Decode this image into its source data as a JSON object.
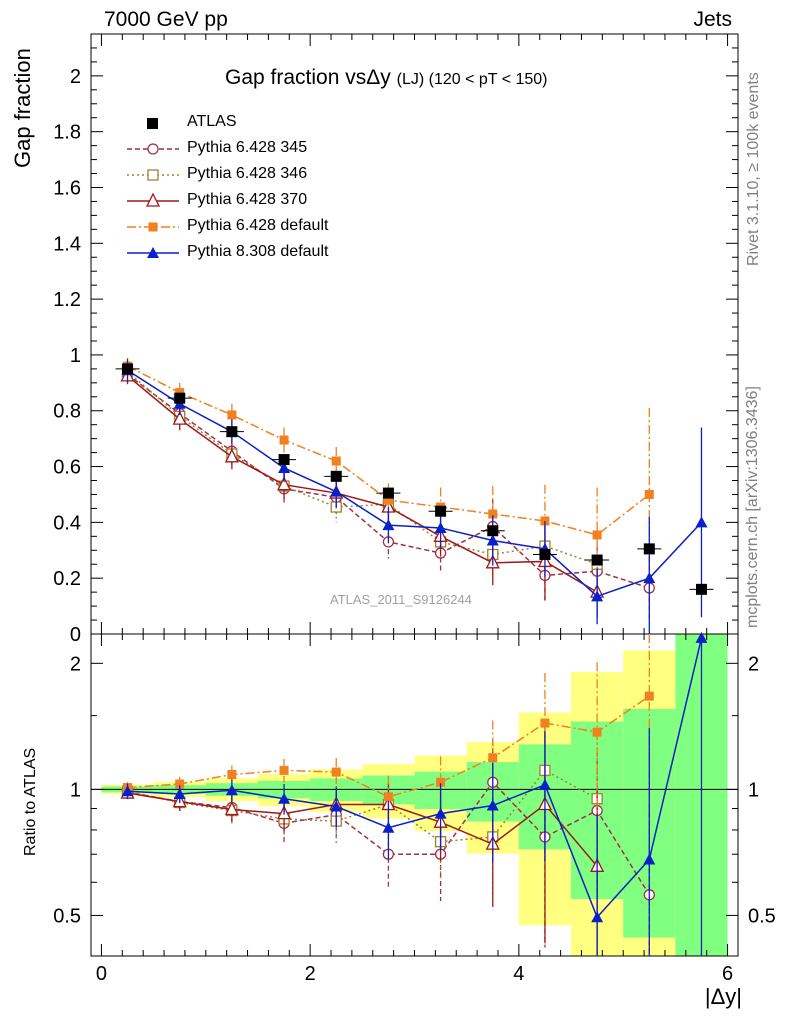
{
  "header": {
    "left": "7000 GeV pp",
    "right": "Jets"
  },
  "side_labels": {
    "top": "Rivet 3.1.10, ≥ 100k events",
    "bottom": "mcplots.cern.ch [arXiv:1306.3436]"
  },
  "watermark": "ATLAS_2011_S9126244",
  "chart_data": {
    "type": "line",
    "title": "Gap fraction vsΔy",
    "title_sub": "(LJ) (120 < pT < 150)",
    "xlabel": "|Δy|",
    "ylabel": "Gap fraction",
    "ratio_ylabel": "Ratio to ATLAS",
    "xlim": [
      -0.1,
      6.1
    ],
    "ylim_main": [
      0,
      2.15
    ],
    "ylim_ratio": [
      0.4,
      2.35
    ],
    "ratio_scale": "log",
    "x_ticks": [
      "0",
      "2",
      "4",
      "6"
    ],
    "y_ticks_main": [
      "0",
      "0.2",
      "0.4",
      "0.6",
      "0.8",
      "1",
      "1.2",
      "1.4",
      "1.6",
      "1.8",
      "2"
    ],
    "y_ticks_ratio": [
      "0.5",
      "1",
      "2"
    ],
    "grid": false,
    "legend_position": "top-left",
    "x": [
      0.25,
      0.75,
      1.25,
      1.75,
      2.25,
      2.75,
      3.25,
      3.75,
      4.25,
      4.75,
      5.25,
      5.75
    ],
    "reference": {
      "name": "ATLAS",
      "values": [
        0.95,
        0.845,
        0.725,
        0.625,
        0.565,
        0.505,
        0.44,
        0.37,
        0.285,
        0.265,
        0.305,
        0.16
      ],
      "band_inner": [
        0.015,
        0.02,
        0.025,
        0.03,
        0.035,
        0.04,
        0.045,
        0.06,
        0.08,
        0.12,
        0.17,
        0.3
      ],
      "band_outer": [
        0.025,
        0.035,
        0.045,
        0.055,
        0.065,
        0.075,
        0.09,
        0.11,
        0.15,
        0.24,
        0.35,
        0.48
      ]
    },
    "series": [
      {
        "name": "Pythia 6.428 345",
        "color": "#a0304a",
        "dash": "5,3",
        "marker": "circle-open",
        "values": [
          0.93,
          0.79,
          0.655,
          0.52,
          0.49,
          0.33,
          0.29,
          0.385,
          0.21,
          0.225,
          0.165,
          null
        ],
        "errors": [
          0.03,
          0.04,
          0.05,
          0.055,
          0.06,
          0.06,
          0.07,
          0.1,
          0.1,
          0.09,
          0.11,
          null
        ],
        "ratios": [
          0.985,
          0.935,
          0.905,
          0.83,
          0.87,
          0.7,
          0.7,
          1.04,
          0.77,
          0.89,
          0.56,
          null
        ]
      },
      {
        "name": "Pythia 6.428 346",
        "color": "#a08030",
        "dash": "2,3",
        "marker": "square-open",
        "values": [
          0.94,
          0.78,
          0.645,
          0.53,
          0.455,
          0.465,
          0.33,
          0.285,
          0.315,
          0.25,
          null,
          null
        ],
        "errors": [
          0.03,
          0.035,
          0.045,
          0.05,
          0.055,
          0.06,
          0.06,
          0.08,
          0.1,
          0.1,
          null,
          null
        ],
        "ratios": [
          0.99,
          0.93,
          0.89,
          0.85,
          0.84,
          0.92,
          0.75,
          0.77,
          1.11,
          0.95,
          null,
          null
        ]
      },
      {
        "name": "Pythia 6.428 370",
        "color": "#a01818",
        "dash": "",
        "marker": "triangle-open",
        "values": [
          0.925,
          0.77,
          0.635,
          0.535,
          0.505,
          0.455,
          0.35,
          0.255,
          0.26,
          0.15,
          null,
          null
        ],
        "errors": [
          0.03,
          0.04,
          0.045,
          0.05,
          0.055,
          0.06,
          0.07,
          0.08,
          0.14,
          0.09,
          null,
          null
        ],
        "ratios": [
          0.98,
          0.935,
          0.895,
          0.875,
          0.92,
          0.92,
          0.835,
          0.74,
          0.92,
          0.655,
          null,
          null
        ]
      },
      {
        "name": "Pythia 6.428 default",
        "color": "#f08020",
        "dash": "9,3,2,3",
        "marker": "square-filled",
        "values": [
          0.96,
          0.865,
          0.785,
          0.695,
          0.62,
          0.48,
          0.455,
          0.43,
          0.405,
          0.355,
          0.5,
          null
        ],
        "errors": [
          0.03,
          0.035,
          0.04,
          0.045,
          0.05,
          0.06,
          0.07,
          0.1,
          0.13,
          0.17,
          0.31,
          null
        ],
        "ratios": [
          1.01,
          1.03,
          1.085,
          1.11,
          1.1,
          0.96,
          1.04,
          1.19,
          1.44,
          1.37,
          1.67,
          null
        ]
      },
      {
        "name": "Pythia 8.308 default",
        "color": "#0a20c8",
        "dash": "",
        "marker": "triangle-filled",
        "values": [
          0.945,
          0.825,
          0.725,
          0.595,
          0.51,
          0.39,
          0.38,
          0.335,
          0.305,
          0.135,
          0.2,
          0.4
        ],
        "errors": [
          0.04,
          0.04,
          0.045,
          0.05,
          0.055,
          0.065,
          0.07,
          0.09,
          0.1,
          0.1,
          0.22,
          0.34
        ],
        "ratios": [
          0.99,
          0.975,
          0.995,
          0.95,
          0.91,
          0.81,
          0.875,
          0.915,
          1.025,
          0.495,
          0.68,
          2.3
        ]
      }
    ]
  }
}
